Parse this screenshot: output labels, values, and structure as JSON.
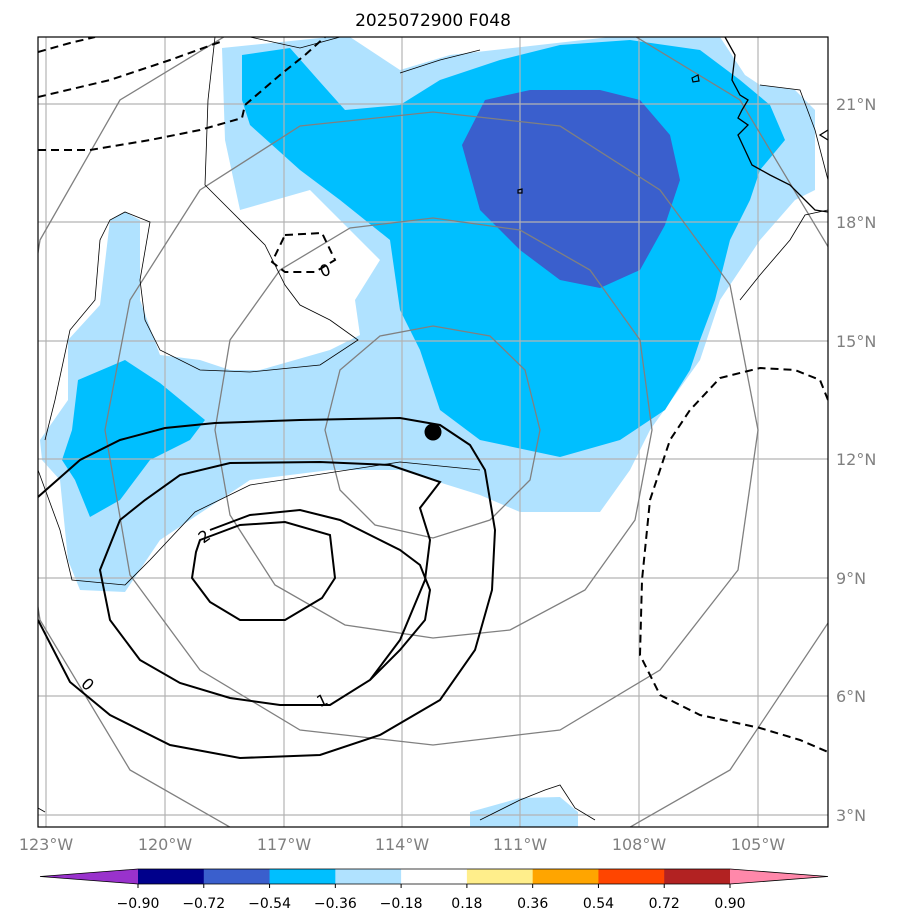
{
  "title": "2025072900 F048",
  "lon_labels": [
    "123°W",
    "120°W",
    "117°W",
    "114°W",
    "111°W",
    "108°W",
    "105°W"
  ],
  "lat_labels": [
    "3°N",
    "6°N",
    "9°N",
    "12°N",
    "15°N",
    "18°N",
    "21°N"
  ],
  "colorbar": {
    "ticks": [
      "−0.90",
      "−0.72",
      "−0.54",
      "−0.36",
      "−0.18",
      "0.18",
      "0.36",
      "0.54",
      "0.72",
      "0.90"
    ],
    "colors": [
      "#9932cc",
      "#00008b",
      "#3a5fcd",
      "#00bfff",
      "#b0e2ff",
      "#ffffff",
      "#ffee8b",
      "#ffa500",
      "#ff4500",
      "#b22222",
      "#ff88aa"
    ]
  },
  "contour_labels": [
    "0",
    "1",
    "2",
    "0"
  ],
  "fill_colors": {
    "light": "#b0e2ff",
    "medium": "#00bfff",
    "dark": "#3a5fcd"
  },
  "marker": {
    "lon": -113.3,
    "lat": 12.7
  }
}
